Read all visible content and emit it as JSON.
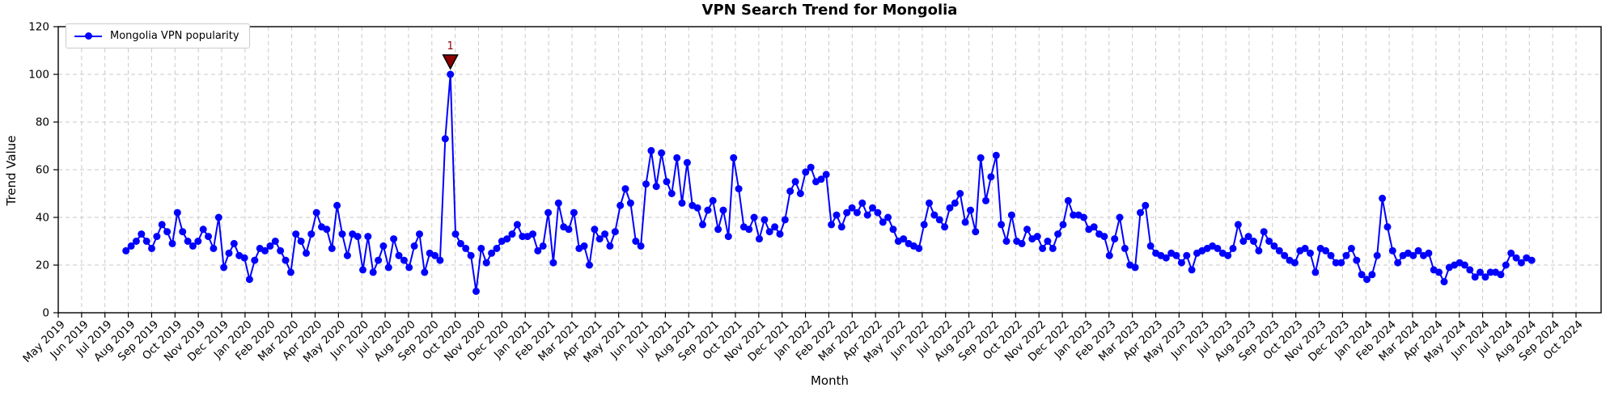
{
  "figure": {
    "title": "VPN Search Trend for Mongolia",
    "xlabel": "Month",
    "ylabel": "Trend Value"
  },
  "legend": {
    "label": "Mongolia VPN popularity"
  },
  "colors": {
    "line": "#0000ff",
    "marker": "#0000ff",
    "grid": "#c9c9c9",
    "spine": "#000000",
    "background": "#ffffff",
    "annotation": "#8b0000"
  },
  "chart_data": {
    "type": "line",
    "title": "VPN Search Trend for Mongolia",
    "xlabel": "Month",
    "ylabel": "Trend Value",
    "ylim": [
      0,
      120
    ],
    "yticks": [
      0,
      20,
      40,
      60,
      80,
      100,
      120
    ],
    "grid": true,
    "legend_position": "upper left",
    "x_tick_labels": [
      "May 2019",
      "Jun 2019",
      "Jul 2019",
      "Aug 2019",
      "Sep 2019",
      "Oct 2019",
      "Nov 2019",
      "Dec 2019",
      "Jan 2020",
      "Feb 2020",
      "Mar 2020",
      "Apr 2020",
      "May 2020",
      "Jun 2020",
      "Jul 2020",
      "Aug 2020",
      "Sep 2020",
      "Oct 2020",
      "Nov 2020",
      "Dec 2020",
      "Jan 2021",
      "Feb 2021",
      "Mar 2021",
      "Apr 2021",
      "May 2021",
      "Jun 2021",
      "Jul 2021",
      "Aug 2021",
      "Sep 2021",
      "Oct 2021",
      "Nov 2021",
      "Dec 2021",
      "Jan 2022",
      "Feb 2022",
      "Mar 2022",
      "Apr 2022",
      "May 2022",
      "Jun 2022",
      "Jul 2022",
      "Aug 2022",
      "Sep 2022",
      "Oct 2022",
      "Nov 2022",
      "Dec 2022",
      "Jan 2023",
      "Feb 2023",
      "Mar 2023",
      "Apr 2023",
      "May 2023",
      "Jun 2023",
      "Jul 2023",
      "Aug 2023",
      "Sep 2023",
      "Oct 2023",
      "Nov 2023",
      "Dec 2023",
      "Jan 2024",
      "Feb 2024",
      "Mar 2024",
      "Apr 2024",
      "May 2024",
      "Jun 2024",
      "Jul 2024",
      "Aug 2024",
      "Sep 2024",
      "Oct 2024"
    ],
    "first_point_month_index": 2.9,
    "last_point_month_index": 63.1,
    "annotation": {
      "text": "1",
      "point_index": 63,
      "value": 100,
      "marker": "triangle-down",
      "color": "#8b0000"
    },
    "series": [
      {
        "name": "Mongolia VPN popularity",
        "color": "#0000ff",
        "marker": "o",
        "values": [
          26,
          28,
          30,
          33,
          30,
          27,
          32,
          37,
          34,
          29,
          42,
          34,
          30,
          28,
          30,
          35,
          32,
          27,
          40,
          19,
          25,
          29,
          24,
          23,
          14,
          22,
          27,
          26,
          28,
          30,
          26,
          22,
          17,
          33,
          30,
          25,
          33,
          42,
          36,
          35,
          27,
          45,
          33,
          24,
          33,
          32,
          18,
          32,
          17,
          22,
          28,
          19,
          31,
          24,
          22,
          19,
          28,
          33,
          17,
          25,
          24,
          22,
          73,
          100,
          33,
          29,
          27,
          24,
          9,
          27,
          21,
          25,
          27,
          30,
          31,
          33,
          37,
          32,
          32,
          33,
          26,
          28,
          42,
          21,
          46,
          36,
          35,
          42,
          27,
          28,
          20,
          35,
          31,
          33,
          28,
          34,
          45,
          52,
          46,
          30,
          28,
          54,
          68,
          53,
          67,
          55,
          50,
          65,
          46,
          63,
          45,
          44,
          37,
          43,
          47,
          35,
          43,
          32,
          65,
          52,
          36,
          35,
          40,
          31,
          39,
          34,
          36,
          33,
          39,
          51,
          55,
          50,
          59,
          61,
          55,
          56,
          58,
          37,
          41,
          36,
          42,
          44,
          42,
          46,
          41,
          44,
          42,
          38,
          40,
          35,
          30,
          31,
          29,
          28,
          27,
          37,
          46,
          41,
          39,
          36,
          44,
          46,
          50,
          38,
          43,
          34,
          65,
          47,
          57,
          66,
          37,
          30,
          41,
          30,
          29,
          35,
          31,
          32,
          27,
          30,
          27,
          33,
          37,
          47,
          41,
          41,
          40,
          35,
          36,
          33,
          32,
          24,
          31,
          40,
          27,
          20,
          19,
          42,
          45,
          28,
          25,
          24,
          23,
          25,
          24,
          21,
          24,
          18,
          25,
          26,
          27,
          28,
          27,
          25,
          24,
          27,
          37,
          30,
          32,
          30,
          26,
          34,
          30,
          28,
          26,
          24,
          22,
          21,
          26,
          27,
          25,
          17,
          27,
          26,
          24,
          21,
          21,
          24,
          27,
          22,
          16,
          14,
          16,
          24,
          48,
          36,
          26,
          21,
          24,
          25,
          24,
          26,
          24,
          25,
          18,
          17,
          13,
          19,
          20,
          21,
          20,
          18,
          15,
          17,
          15,
          17,
          17,
          16,
          20,
          25,
          23,
          21,
          23,
          22
        ]
      }
    ]
  }
}
